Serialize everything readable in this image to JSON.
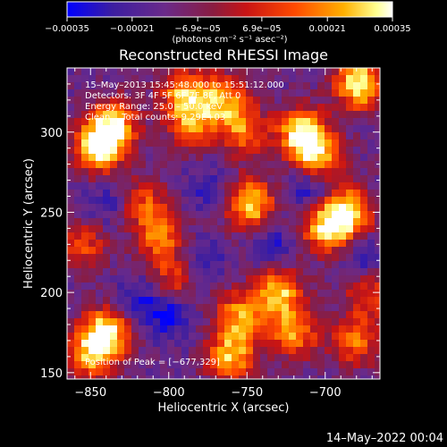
{
  "chart_data": {
    "type": "heatmap",
    "title": "Reconstructed RHESSI Image",
    "xlabel": "Heliocentric X (arcsec)",
    "ylabel": "Heliocentric Y (arcsec)",
    "xlim": [
      -865,
      -665
    ],
    "ylim": [
      146,
      340
    ],
    "x_ticks": [
      -850,
      -800,
      -750,
      -700
    ],
    "x_tick_labels": [
      "−850",
      "−800",
      "−750",
      "−700"
    ],
    "y_ticks": [
      150,
      200,
      250,
      300
    ],
    "y_tick_labels": [
      "150",
      "200",
      "250",
      "300"
    ],
    "colorbar": {
      "range": [
        -0.00035,
        0.00035
      ],
      "ticks": [
        -0.00035,
        -0.00021,
        -6.9e-05,
        6.9e-05,
        0.00021,
        0.00035
      ],
      "tick_labels": [
        "−0.00035",
        "−0.00021",
        "−6.9e−05",
        "6.9e−05",
        "0.00021",
        "0.00035"
      ],
      "units": "(photons cm⁻² s⁻¹ asec⁻²)",
      "colormap": [
        "#0000ff",
        "#4b0082",
        "#6a2a8a",
        "#b01818",
        "#ff3a00",
        "#ff9a00",
        "#ffff80",
        "#ffffff"
      ]
    },
    "annotations": [
      "15–May–2013 15:45:48.000 to 15:51:12.000",
      "Detectors: 3F 4F 5F 6F 7F 8F, Att 0",
      "Energy Range: 25.0 – 50.0 keV",
      "Clean    Total counts: 9.29E+03"
    ],
    "peak_label": "Position of Peak = [−677,329]",
    "peak": [
      -677,
      329
    ],
    "hotspots": [
      {
        "x": -845,
        "y": 290,
        "v": 1.0
      },
      {
        "x": -835,
        "y": 305,
        "v": 0.8
      },
      {
        "x": -790,
        "y": 325,
        "v": 0.7
      },
      {
        "x": -785,
        "y": 305,
        "v": 0.6
      },
      {
        "x": -765,
        "y": 320,
        "v": 0.7
      },
      {
        "x": -748,
        "y": 255,
        "v": 0.9
      },
      {
        "x": -752,
        "y": 300,
        "v": 0.6
      },
      {
        "x": -715,
        "y": 300,
        "v": 0.9
      },
      {
        "x": -705,
        "y": 285,
        "v": 0.8
      },
      {
        "x": -678,
        "y": 330,
        "v": 1.0
      },
      {
        "x": -685,
        "y": 250,
        "v": 0.9
      },
      {
        "x": -700,
        "y": 240,
        "v": 0.8
      },
      {
        "x": -730,
        "y": 200,
        "v": 0.8
      },
      {
        "x": -720,
        "y": 175,
        "v": 0.7
      },
      {
        "x": -760,
        "y": 160,
        "v": 0.8
      },
      {
        "x": -755,
        "y": 185,
        "v": 0.7
      },
      {
        "x": -840,
        "y": 175,
        "v": 0.9
      },
      {
        "x": -850,
        "y": 160,
        "v": 0.7
      },
      {
        "x": -805,
        "y": 235,
        "v": 0.6
      },
      {
        "x": -815,
        "y": 255,
        "v": 0.5
      },
      {
        "x": -855,
        "y": 230,
        "v": 0.5
      },
      {
        "x": -795,
        "y": 210,
        "v": 0.5
      },
      {
        "x": -680,
        "y": 170,
        "v": 0.6
      },
      {
        "x": -672,
        "y": 200,
        "v": 0.5
      }
    ],
    "coldspots": [
      {
        "x": -800,
        "y": 185,
        "v": 0.8
      },
      {
        "x": -780,
        "y": 220,
        "v": 0.7
      },
      {
        "x": -710,
        "y": 265,
        "v": 0.8
      },
      {
        "x": -735,
        "y": 230,
        "v": 0.6
      },
      {
        "x": -840,
        "y": 255,
        "v": 0.5
      },
      {
        "x": -775,
        "y": 265,
        "v": 0.5
      },
      {
        "x": -675,
        "y": 220,
        "v": 0.6
      },
      {
        "x": -820,
        "y": 195,
        "v": 0.6
      }
    ],
    "grid": false
  },
  "footer": {
    "timestamp": "14–May–2022 00:04"
  }
}
